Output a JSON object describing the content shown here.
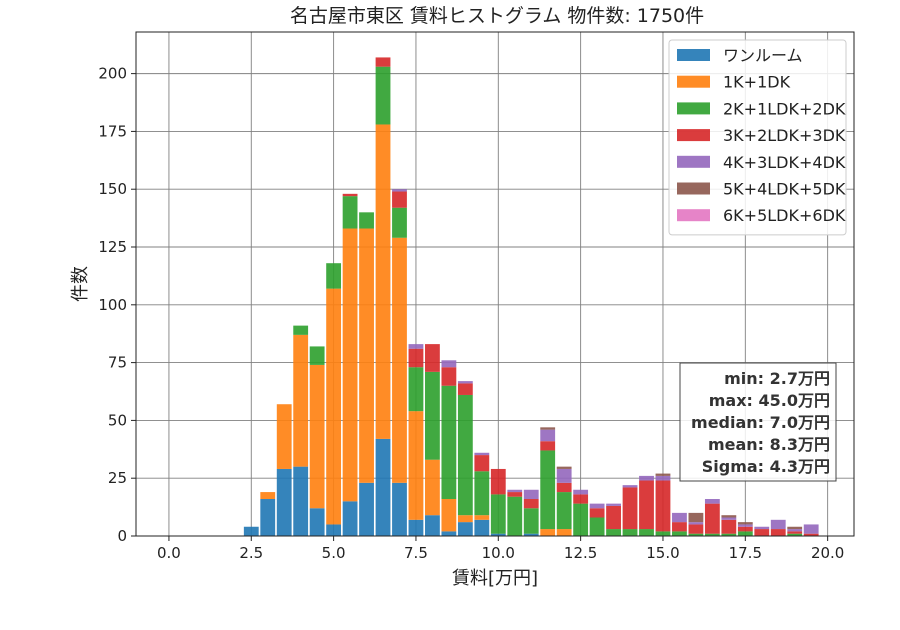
{
  "chart_data": {
    "type": "bar",
    "stacked": true,
    "title": "名古屋市東区 賃料ヒストグラム 物件数: 1750件",
    "xlabel": "賃料[万円]",
    "ylabel": "件数",
    "xlim": [
      -1.0,
      20.8
    ],
    "ylim": [
      0,
      218
    ],
    "xticks": [
      "0.0",
      "2.5",
      "5.0",
      "7.5",
      "10.0",
      "12.5",
      "15.0",
      "17.5",
      "20.0"
    ],
    "yticks": [
      "0",
      "25",
      "50",
      "75",
      "100",
      "125",
      "150",
      "175",
      "200"
    ],
    "grid": true,
    "legend_position": "top-right",
    "bin_width": 0.5,
    "x": [
      2.5,
      3.0,
      3.5,
      4.0,
      4.5,
      5.0,
      5.5,
      6.0,
      6.5,
      7.0,
      7.5,
      8.0,
      8.5,
      9.0,
      9.5,
      10.0,
      10.5,
      11.0,
      11.5,
      12.0,
      12.5,
      13.0,
      13.5,
      14.0,
      14.5,
      15.0,
      15.5,
      16.0,
      16.5,
      17.0,
      17.5,
      18.0,
      18.5,
      19.0,
      19.5
    ],
    "series": [
      {
        "name": "ワンルーム",
        "color": "#1f77b4",
        "values": [
          4,
          16,
          29,
          30,
          12,
          5,
          15,
          23,
          42,
          23,
          7,
          9,
          2,
          6,
          7,
          1,
          0,
          1,
          0,
          0,
          0,
          0,
          0,
          0,
          0,
          0,
          0,
          0,
          0,
          0,
          0,
          0,
          0,
          0,
          0
        ]
      },
      {
        "name": "1K+1DK",
        "color": "#ff7f0e",
        "values": [
          0,
          3,
          28,
          57,
          62,
          102,
          118,
          110,
          136,
          106,
          47,
          24,
          14,
          3,
          2,
          0,
          0,
          0,
          3,
          3,
          0,
          0,
          0,
          0,
          0,
          0,
          0,
          0,
          0,
          0,
          0,
          0,
          0,
          0,
          0
        ]
      },
      {
        "name": "2K+1LDK+2DK",
        "color": "#2ca02c",
        "values": [
          0,
          0,
          0,
          4,
          8,
          11,
          14,
          7,
          25,
          13,
          19,
          38,
          49,
          52,
          19,
          17,
          17,
          11,
          34,
          16,
          14,
          8,
          3,
          3,
          3,
          2,
          2,
          1,
          1,
          1,
          2,
          0,
          0,
          1,
          0
        ]
      },
      {
        "name": "3K+2LDK+3DK",
        "color": "#d62728",
        "values": [
          0,
          0,
          0,
          0,
          0,
          0,
          1,
          0,
          4,
          7,
          8,
          12,
          8,
          5,
          7,
          11,
          2,
          4,
          4,
          4,
          4,
          4,
          10,
          18,
          21,
          22,
          4,
          4,
          13,
          6,
          2,
          3,
          3,
          1,
          1
        ]
      },
      {
        "name": "4K+3LDK+4DK",
        "color": "#9467bd",
        "values": [
          0,
          0,
          0,
          0,
          0,
          0,
          0,
          0,
          0,
          1,
          2,
          0,
          3,
          1,
          1,
          0,
          1,
          4,
          5,
          6,
          2,
          2,
          1,
          1,
          2,
          2,
          4,
          1,
          2,
          1,
          1,
          1,
          4,
          1,
          4
        ]
      },
      {
        "name": "5K+4LDK+5DK",
        "color": "#8c564b",
        "values": [
          0,
          0,
          0,
          0,
          0,
          0,
          0,
          0,
          0,
          0,
          0,
          0,
          0,
          0,
          0,
          0,
          0,
          0,
          1,
          1,
          0,
          0,
          0,
          0,
          0,
          1,
          0,
          4,
          0,
          1,
          1,
          0,
          0,
          1,
          0
        ]
      },
      {
        "name": "6K+5LDK+6DK",
        "color": "#e377c2",
        "values": [
          0,
          0,
          0,
          0,
          0,
          0,
          0,
          0,
          0,
          0,
          0,
          0,
          0,
          0,
          0,
          0,
          0,
          0,
          0,
          0,
          0,
          0,
          0,
          0,
          0,
          0,
          0,
          0,
          0,
          0,
          0,
          0,
          0,
          0,
          0
        ]
      }
    ],
    "stats": [
      "min: 2.7万円",
      "max: 45.0万円",
      "median: 7.0万円",
      "mean: 8.3万円",
      "Sigma: 4.3万円"
    ]
  }
}
